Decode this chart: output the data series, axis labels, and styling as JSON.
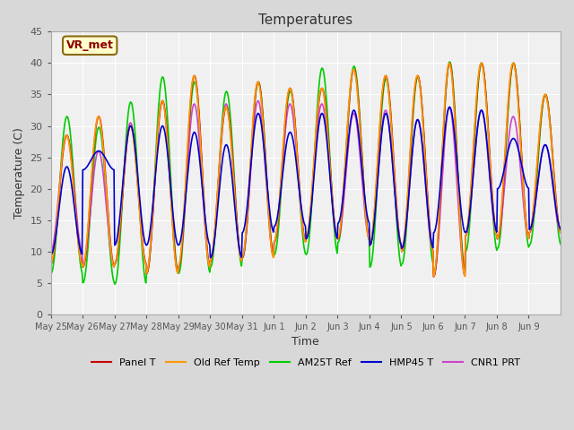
{
  "title": "Temperatures",
  "xlabel": "Time",
  "ylabel": "Temperature (C)",
  "ylim": [
    0,
    45
  ],
  "annotation_text": "VR_met",
  "x_tick_labels": [
    "May 25",
    "May 26",
    "May 27",
    "May 28",
    "May 29",
    "May 30",
    "May 31",
    "Jun 1",
    "Jun 2",
    "Jun 3",
    "Jun 4",
    "Jun 5",
    "Jun 6",
    "Jun 7",
    "Jun 8",
    "Jun 9"
  ],
  "n_days": 16,
  "t_min_base": [
    8,
    7.5,
    8,
    6.5,
    7.5,
    8.5,
    9,
    11.5,
    12,
    12,
    11,
    10,
    6,
    12.5,
    12,
    13
  ],
  "t_max_base": [
    28.5,
    31.5,
    30,
    34,
    38,
    33,
    37,
    36,
    36,
    39,
    38,
    38,
    40,
    40,
    40,
    35
  ],
  "t_min_green": [
    6.5,
    5,
    4.8,
    6.5,
    6.5,
    7.5,
    9,
    9.5,
    9.5,
    11.5,
    7.5,
    8,
    6.5,
    10,
    10.5,
    11
  ],
  "t_max_green": [
    31.5,
    29.8,
    33.8,
    37.8,
    37,
    35.5,
    37,
    35.5,
    39.2,
    39.5,
    37.5,
    37.8,
    40.2,
    40,
    40,
    35
  ],
  "t_min_blue": [
    9.5,
    23,
    11,
    11,
    11,
    9,
    13,
    14,
    12,
    14.5,
    11,
    10.5,
    13,
    13,
    20,
    13.5
  ],
  "t_max_blue": [
    23.5,
    26,
    30,
    30,
    29,
    27,
    32,
    29,
    32,
    32.5,
    32,
    31,
    33,
    32.5,
    28,
    27
  ],
  "t_min_purple": [
    10,
    7.5,
    8,
    6.5,
    7.5,
    8.5,
    9,
    11.5,
    12,
    12,
    11,
    10,
    6,
    12.5,
    12,
    13
  ],
  "t_max_purple": [
    28.5,
    26,
    30.5,
    34,
    33.5,
    33.5,
    34,
    33.5,
    33.5,
    32,
    32.5,
    31,
    33,
    32.5,
    31.5,
    27
  ],
  "series_colors": {
    "panel": "#cc0000",
    "old": "#ff9900",
    "green": "#00cc00",
    "blue": "#0000cc",
    "purple": "#cc44cc"
  }
}
